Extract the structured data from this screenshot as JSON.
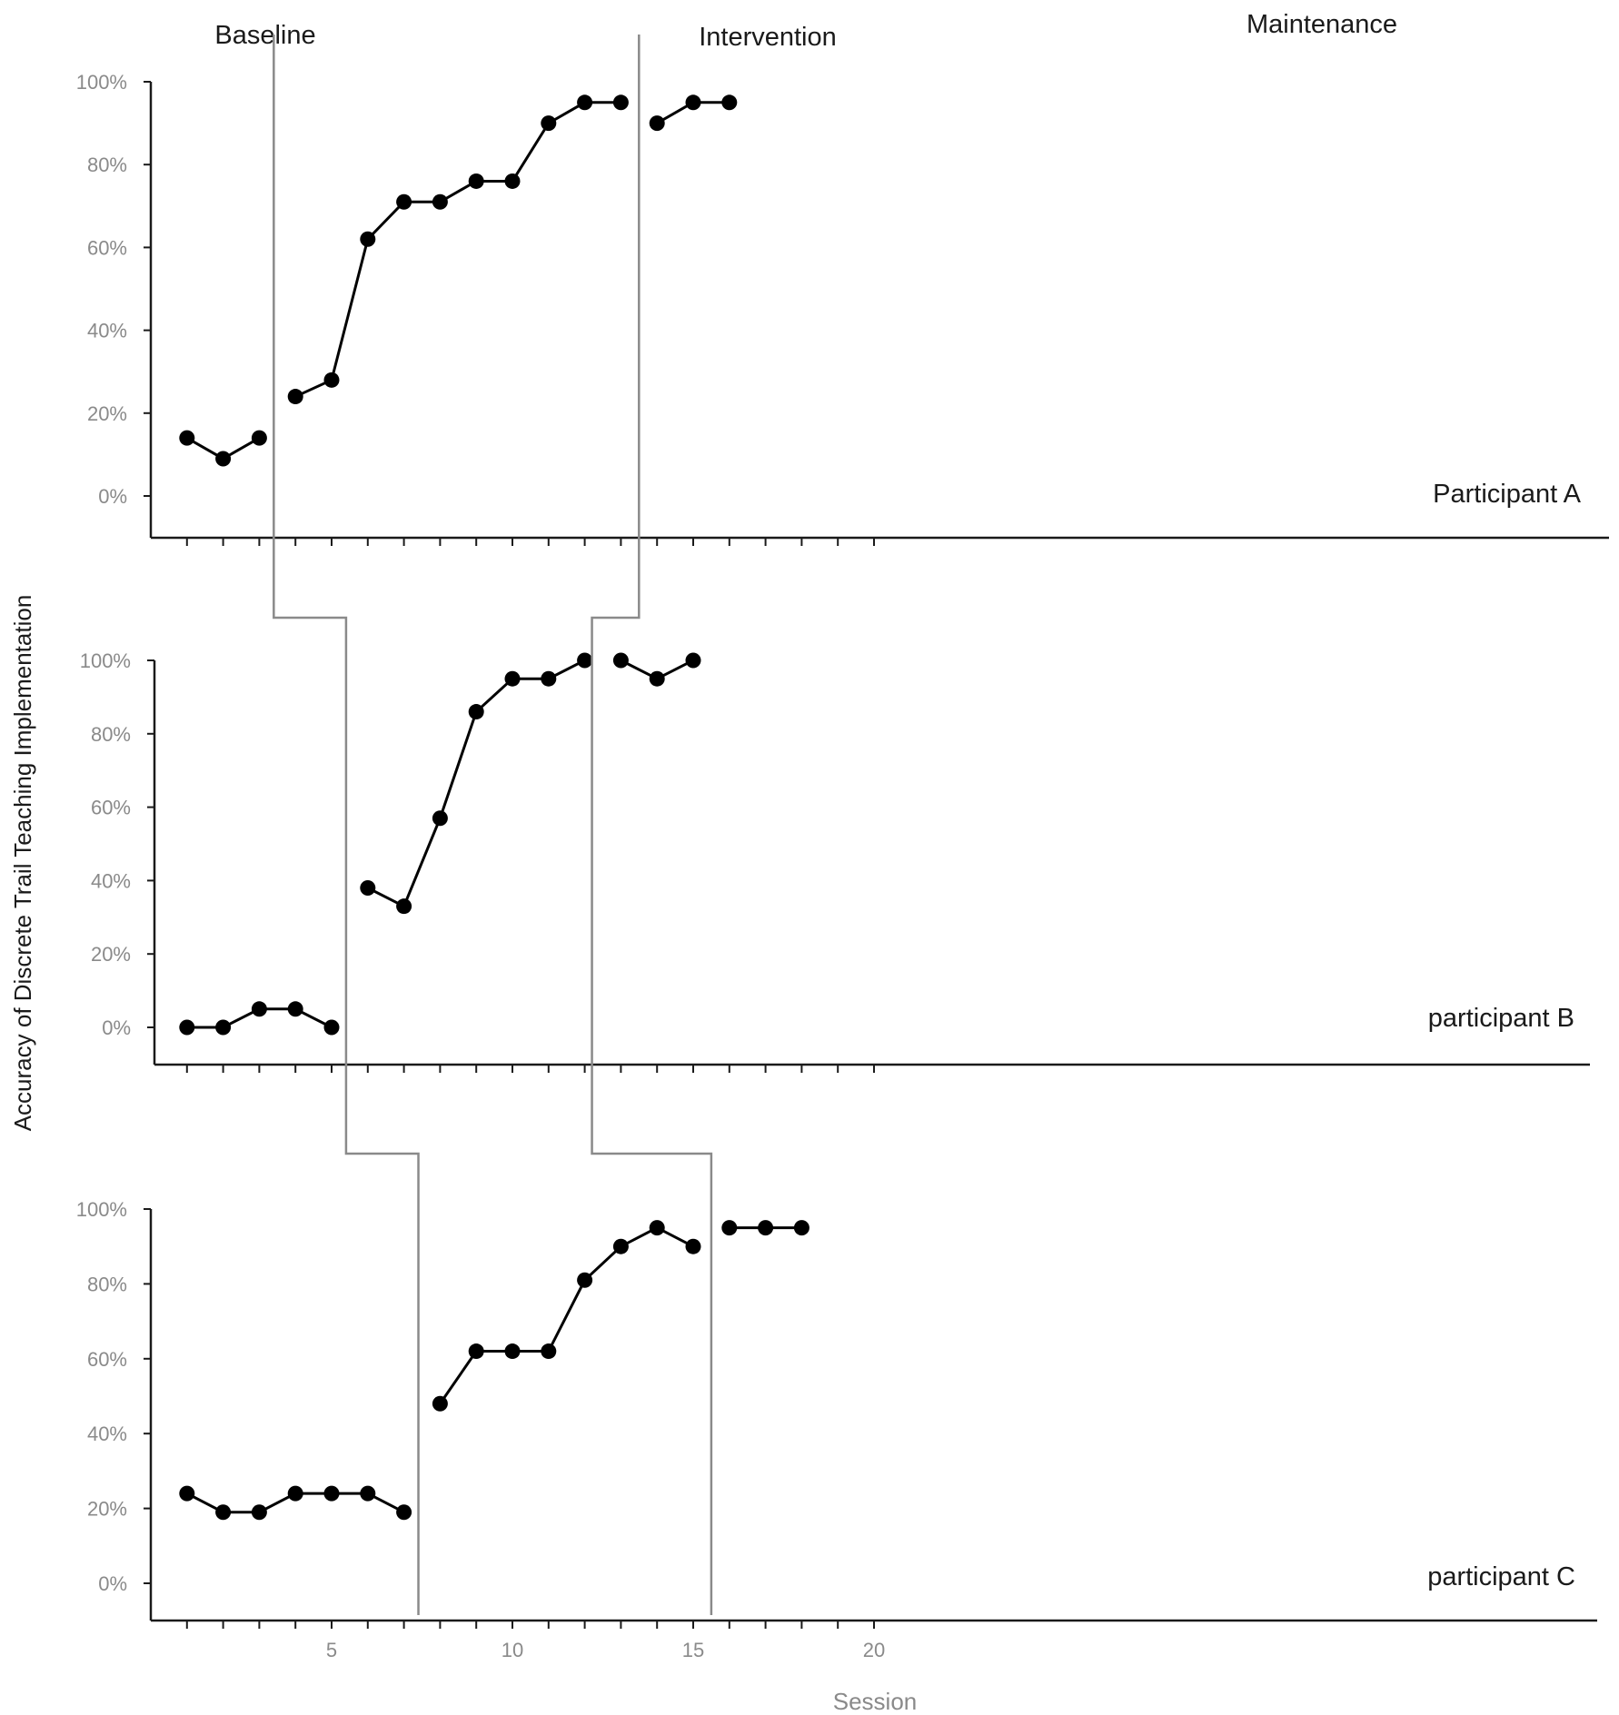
{
  "chart_data": {
    "type": "line",
    "ylabel": "Accuracy of Discrete Trail Teaching Implementation",
    "xlabel": "Session",
    "x_ticks": [
      5,
      10,
      15,
      20
    ],
    "y_ticks": [
      "0%",
      "20%",
      "40%",
      "60%",
      "80%",
      "100%"
    ],
    "ylim": [
      0,
      100
    ],
    "xlim": [
      0,
      20
    ],
    "phases": [
      "Baseline",
      "Intervention",
      "Maintenance"
    ],
    "panels": [
      {
        "name": "Participant A",
        "phase_changes": [
          3.4,
          13.5
        ],
        "segments": [
          {
            "phase": "Baseline",
            "x": [
              1,
              2,
              3
            ],
            "y": [
              14,
              9,
              14
            ]
          },
          {
            "phase": "Intervention",
            "x": [
              4,
              5,
              6,
              7,
              8,
              9,
              10,
              11,
              12,
              13
            ],
            "y": [
              24,
              28,
              62,
              71,
              71,
              76,
              76,
              90,
              95,
              95
            ]
          },
          {
            "phase": "Maintenance",
            "x": [
              14,
              15,
              16
            ],
            "y": [
              90,
              95,
              95
            ]
          }
        ]
      },
      {
        "name": "participant  B",
        "phase_changes": [
          5.4,
          12.2
        ],
        "segments": [
          {
            "phase": "Baseline",
            "x": [
              1,
              2,
              3,
              4,
              5
            ],
            "y": [
              0,
              0,
              5,
              5,
              0
            ]
          },
          {
            "phase": "Intervention",
            "x": [
              6,
              7,
              8,
              9,
              10,
              11,
              12
            ],
            "y": [
              38,
              33,
              57,
              86,
              95,
              95,
              100
            ]
          },
          {
            "phase": "Maintenance",
            "x": [
              13,
              14,
              15
            ],
            "y": [
              100,
              95,
              100
            ]
          }
        ]
      },
      {
        "name": "participant  C",
        "phase_changes": [
          7.4,
          15.5
        ],
        "segments": [
          {
            "phase": "Baseline",
            "x": [
              1,
              2,
              3,
              4,
              5,
              6,
              7
            ],
            "y": [
              24,
              19,
              19,
              24,
              24,
              24,
              19
            ]
          },
          {
            "phase": "Intervention",
            "x": [
              8,
              9,
              10,
              11,
              12,
              13,
              14,
              15
            ],
            "y": [
              48,
              62,
              62,
              62,
              81,
              90,
              95,
              90
            ]
          },
          {
            "phase": "Maintenance",
            "x": [
              16,
              17,
              18
            ],
            "y": [
              95,
              95,
              95
            ]
          }
        ]
      }
    ]
  }
}
